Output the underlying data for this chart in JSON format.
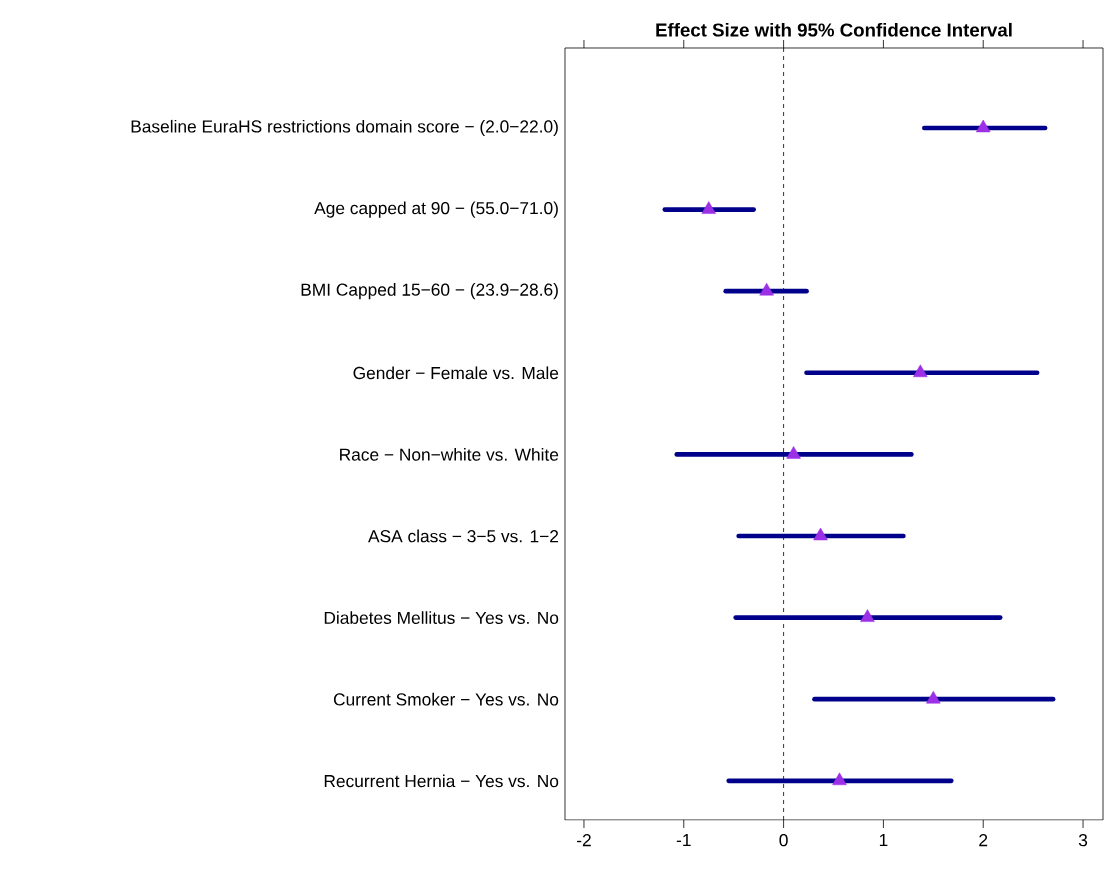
{
  "chart_data": {
    "type": "scatter",
    "title": "Effect Size with 95% Confidence Interval",
    "orientation": "horizontal",
    "marker": "triangle",
    "categories": [
      "Baseline EuraHS restrictions domain score − (2.0−22.0)",
      "Age capped at 90 − (55.0−71.0)",
      "BMI Capped 15−60 − (23.9−28.6)",
      "Gender − Female vs. Male",
      "Race − Non−white vs. White",
      "ASA class − 3−5 vs. 1−2",
      "Diabetes Mellitus − Yes vs. No",
      "Current Smoker − Yes vs. No",
      "Recurrent Hernia − Yes vs. No"
    ],
    "values": [
      2.0,
      -0.75,
      -0.17,
      1.37,
      0.1,
      0.37,
      0.84,
      1.5,
      0.56
    ],
    "errors": [
      [
        1.41,
        2.62
      ],
      [
        -1.19,
        -0.3
      ],
      [
        -0.58,
        0.23
      ],
      [
        0.23,
        2.54
      ],
      [
        -1.07,
        1.28
      ],
      [
        -0.45,
        1.2
      ],
      [
        -0.48,
        2.17
      ],
      [
        0.31,
        2.7
      ],
      [
        -0.55,
        1.68
      ]
    ],
    "color": "#9b30e6",
    "xlim": [
      -2.19,
      3.2
    ],
    "xticks": [
      -2,
      -1,
      0,
      1,
      2,
      3
    ],
    "ref_lines": [
      {
        "axis": "x",
        "value": 0,
        "line_style": "dashed",
        "color": "#000000"
      }
    ]
  }
}
